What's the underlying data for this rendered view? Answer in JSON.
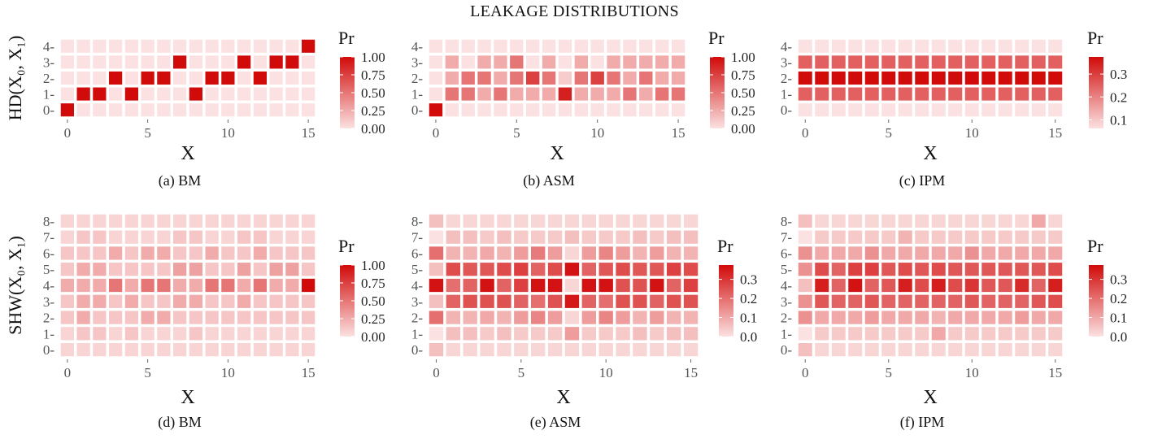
{
  "title": "LEAKAGE DISTRIBUTIONS",
  "row_labels": [
    "HD(X₀, X₁)",
    "SHW(X₀, X₁)"
  ],
  "colors": {
    "low": "#fbe1e1",
    "high": "#d10a0a"
  },
  "chart_data": [
    {
      "type": "heatmap",
      "caption": "(a) BM",
      "xlabel": "X",
      "ylabel": "HD(X₀, X₁)",
      "x_categories": [
        0,
        1,
        2,
        3,
        4,
        5,
        6,
        7,
        8,
        9,
        10,
        11,
        12,
        13,
        14,
        15
      ],
      "y_categories": [
        0,
        1,
        2,
        3,
        4
      ],
      "x_ticks": [
        "0",
        "5",
        "10",
        "15"
      ],
      "y_ticks": [
        "0",
        "1",
        "2",
        "3",
        "4"
      ],
      "legend_title": "Pr",
      "colorbar_ticks": [
        "0.00",
        "0.25",
        "0.50",
        "0.75",
        "1.00"
      ],
      "value_range": [
        0,
        1
      ],
      "values": [
        [
          1,
          0,
          0,
          0,
          0,
          0,
          0,
          0,
          0,
          0,
          0,
          0,
          0,
          0,
          0,
          0
        ],
        [
          0,
          1,
          1,
          0,
          1,
          0,
          0,
          0,
          1,
          0,
          0,
          0,
          0,
          0,
          0,
          0
        ],
        [
          0,
          0,
          0,
          1,
          0,
          1,
          1,
          0,
          0,
          1,
          1,
          0,
          1,
          0,
          0,
          0
        ],
        [
          0,
          0,
          0,
          0,
          0,
          0,
          0,
          1,
          0,
          0,
          0,
          1,
          0,
          1,
          1,
          0
        ],
        [
          0,
          0,
          0,
          0,
          0,
          0,
          0,
          0,
          0,
          0,
          0,
          0,
          0,
          0,
          0,
          1
        ]
      ]
    },
    {
      "type": "heatmap",
      "caption": "(b) ASM",
      "xlabel": "X",
      "ylabel": "",
      "x_categories": [
        0,
        1,
        2,
        3,
        4,
        5,
        6,
        7,
        8,
        9,
        10,
        11,
        12,
        13,
        14,
        15
      ],
      "y_categories": [
        0,
        1,
        2,
        3,
        4
      ],
      "x_ticks": [
        "0",
        "5",
        "10",
        "15"
      ],
      "y_ticks": [
        "0",
        "1",
        "2",
        "3",
        "4"
      ],
      "legend_title": "Pr",
      "colorbar_ticks": [
        "0.00",
        "0.25",
        "0.50",
        "0.75",
        "1.00"
      ],
      "value_range": [
        0,
        1
      ],
      "values": [
        [
          1,
          0,
          0,
          0,
          0,
          0,
          0,
          0,
          0,
          0,
          0,
          0,
          0,
          0,
          0,
          0
        ],
        [
          0,
          0.5,
          0.5,
          0.25,
          0.5,
          0.25,
          0.25,
          0.25,
          0.9,
          0.25,
          0.25,
          0.25,
          0.5,
          0.25,
          0.5,
          0.5
        ],
        [
          0,
          0.25,
          0.5,
          0.5,
          0.25,
          0.5,
          0.75,
          0.5,
          0.1,
          0.5,
          0.75,
          0.5,
          0.25,
          0.5,
          0.25,
          0.25
        ],
        [
          0,
          0.25,
          0,
          0.25,
          0.25,
          0.5,
          0,
          0.25,
          0,
          0.25,
          0,
          0.25,
          0.25,
          0.25,
          0.25,
          0.25
        ],
        [
          0,
          0,
          0,
          0,
          0,
          0,
          0,
          0,
          0,
          0,
          0,
          0,
          0,
          0,
          0,
          0
        ]
      ]
    },
    {
      "type": "heatmap",
      "caption": "(c) IPM",
      "xlabel": "X",
      "ylabel": "",
      "x_categories": [
        0,
        1,
        2,
        3,
        4,
        5,
        6,
        7,
        8,
        9,
        10,
        11,
        12,
        13,
        14,
        15
      ],
      "y_categories": [
        0,
        1,
        2,
        3,
        4
      ],
      "x_ticks": [
        "0",
        "5",
        "10",
        "15"
      ],
      "y_ticks": [
        "0",
        "1",
        "2",
        "3",
        "4"
      ],
      "legend_title": "Pr",
      "colorbar_ticks": [
        "0.1",
        "0.2",
        "0.3"
      ],
      "value_range": [
        0.0625,
        0.375
      ],
      "values": [
        [
          0.0625,
          0.0625,
          0.0625,
          0.0625,
          0.0625,
          0.0625,
          0.0625,
          0.0625,
          0.0625,
          0.0625,
          0.0625,
          0.0625,
          0.0625,
          0.0625,
          0.0625,
          0.0625
        ],
        [
          0.25,
          0.25,
          0.25,
          0.25,
          0.25,
          0.25,
          0.25,
          0.25,
          0.25,
          0.25,
          0.25,
          0.25,
          0.25,
          0.25,
          0.25,
          0.25
        ],
        [
          0.375,
          0.375,
          0.375,
          0.375,
          0.375,
          0.375,
          0.375,
          0.375,
          0.375,
          0.375,
          0.375,
          0.375,
          0.375,
          0.375,
          0.375,
          0.375
        ],
        [
          0.25,
          0.25,
          0.25,
          0.25,
          0.25,
          0.25,
          0.25,
          0.25,
          0.25,
          0.25,
          0.25,
          0.25,
          0.25,
          0.25,
          0.25,
          0.25
        ],
        [
          0.0625,
          0.0625,
          0.0625,
          0.0625,
          0.0625,
          0.0625,
          0.0625,
          0.0625,
          0.0625,
          0.0625,
          0.0625,
          0.0625,
          0.0625,
          0.0625,
          0.0625,
          0.0625
        ]
      ]
    },
    {
      "type": "heatmap",
      "caption": "(d) BM",
      "xlabel": "X",
      "ylabel": "SHW(X₀, X₁)",
      "x_categories": [
        0,
        1,
        2,
        3,
        4,
        5,
        6,
        7,
        8,
        9,
        10,
        11,
        12,
        13,
        14,
        15
      ],
      "y_categories": [
        0,
        1,
        2,
        3,
        4,
        5,
        6,
        7,
        8
      ],
      "x_ticks": [
        "0",
        "5",
        "10",
        "15"
      ],
      "y_ticks": [
        "0",
        "1",
        "2",
        "3",
        "4",
        "5",
        "6",
        "7",
        "8"
      ],
      "legend_title": "Pr",
      "colorbar_ticks": [
        "0.00",
        "0.25",
        "0.50",
        "0.75",
        "1.00"
      ],
      "value_range": [
        0,
        1
      ],
      "values": [
        [
          0.0625,
          0.0625,
          0.0625,
          0.0625,
          0.0625,
          0.0625,
          0.0625,
          0.0625,
          0.0625,
          0.0625,
          0.0625,
          0.0625,
          0.0625,
          0.0625,
          0.0625,
          0.0625
        ],
        [
          0.0625,
          0.125,
          0.125,
          0.0625,
          0.125,
          0.0625,
          0.0625,
          0.0625,
          0.125,
          0.0625,
          0.0625,
          0.0625,
          0.0625,
          0.0625,
          0.0625,
          0.0625
        ],
        [
          0.125,
          0.25,
          0.125,
          0.125,
          0.125,
          0.25,
          0.25,
          0.125,
          0.125,
          0.125,
          0.125,
          0.125,
          0.125,
          0.125,
          0.125,
          0.125
        ],
        [
          0.125,
          0.25,
          0.25,
          0.125,
          0.25,
          0.125,
          0.125,
          0.25,
          0.25,
          0.125,
          0.125,
          0.25,
          0.125,
          0.125,
          0.125,
          0.125
        ],
        [
          0.25,
          0.25,
          0.25,
          0.5,
          0.25,
          0.5,
          0.5,
          0.25,
          0.25,
          0.5,
          0.5,
          0.25,
          0.5,
          0.25,
          0.25,
          1
        ],
        [
          0.125,
          0.25,
          0.25,
          0.125,
          0.125,
          0.125,
          0.125,
          0.3,
          0.3,
          0.125,
          0.125,
          0.3,
          0.125,
          0.3,
          0.3,
          0.125
        ],
        [
          0.125,
          0.125,
          0.125,
          0.25,
          0.125,
          0.25,
          0.25,
          0.125,
          0.125,
          0.25,
          0.125,
          0.125,
          0.25,
          0.125,
          0.125,
          0.125
        ],
        [
          0.0625,
          0.125,
          0.125,
          0.0625,
          0.0625,
          0.0625,
          0.0625,
          0.125,
          0.125,
          0.0625,
          0.0625,
          0.125,
          0.125,
          0.0625,
          0.0625,
          0.0625
        ],
        [
          0.0625,
          0.0625,
          0.0625,
          0.0625,
          0.0625,
          0.0625,
          0.0625,
          0.0625,
          0.0625,
          0.0625,
          0.0625,
          0.0625,
          0.0625,
          0.0625,
          0.0625,
          0.0625
        ]
      ]
    },
    {
      "type": "heatmap",
      "caption": "(e) ASM",
      "xlabel": "X",
      "ylabel": "",
      "x_categories": [
        0,
        1,
        2,
        3,
        4,
        5,
        6,
        7,
        8,
        9,
        10,
        11,
        12,
        13,
        14,
        15
      ],
      "y_categories": [
        0,
        1,
        2,
        3,
        4,
        5,
        6,
        7,
        8
      ],
      "x_ticks": [
        "0",
        "5",
        "10",
        "15"
      ],
      "y_ticks": [
        "0",
        "1",
        "2",
        "3",
        "4",
        "5",
        "6",
        "7",
        "8"
      ],
      "legend_title": "Pr",
      "colorbar_ticks": [
        "0.0",
        "0.1",
        "0.2",
        "0.3"
      ],
      "value_range": [
        0,
        0.375
      ],
      "values": [
        [
          0.06,
          0.02,
          0.02,
          0.02,
          0.02,
          0.02,
          0.02,
          0.02,
          0.02,
          0.02,
          0.02,
          0.02,
          0.02,
          0.02,
          0.02,
          0.02
        ],
        [
          0.0,
          0.06,
          0.06,
          0.04,
          0.06,
          0.04,
          0.04,
          0.04,
          0.12,
          0.04,
          0.04,
          0.04,
          0.06,
          0.04,
          0.06,
          0.06
        ],
        [
          0.2,
          0.08,
          0.08,
          0.1,
          0.08,
          0.12,
          0.16,
          0.12,
          0.02,
          0.12,
          0.16,
          0.12,
          0.08,
          0.12,
          0.08,
          0.08
        ],
        [
          0.06,
          0.22,
          0.25,
          0.25,
          0.25,
          0.22,
          0.2,
          0.25,
          0.35,
          0.22,
          0.2,
          0.25,
          0.25,
          0.22,
          0.25,
          0.25
        ],
        [
          0.36,
          0.2,
          0.22,
          0.36,
          0.22,
          0.28,
          0.36,
          0.36,
          0.02,
          0.36,
          0.36,
          0.25,
          0.25,
          0.36,
          0.22,
          0.28
        ],
        [
          0.06,
          0.26,
          0.24,
          0.24,
          0.26,
          0.28,
          0.22,
          0.26,
          0.36,
          0.22,
          0.24,
          0.26,
          0.24,
          0.24,
          0.28,
          0.26
        ],
        [
          0.2,
          0.08,
          0.08,
          0.1,
          0.08,
          0.12,
          0.18,
          0.12,
          0.02,
          0.12,
          0.16,
          0.12,
          0.08,
          0.12,
          0.08,
          0.08
        ],
        [
          0.0,
          0.06,
          0.06,
          0.04,
          0.06,
          0.04,
          0.04,
          0.04,
          0.06,
          0.04,
          0.04,
          0.04,
          0.06,
          0.04,
          0.06,
          0.06
        ],
        [
          0.06,
          0.02,
          0.02,
          0.02,
          0.02,
          0.02,
          0.02,
          0.02,
          0.02,
          0.02,
          0.02,
          0.02,
          0.02,
          0.02,
          0.02,
          0.02
        ]
      ]
    },
    {
      "type": "heatmap",
      "caption": "(f) IPM",
      "xlabel": "X",
      "ylabel": "",
      "x_categories": [
        0,
        1,
        2,
        3,
        4,
        5,
        6,
        7,
        8,
        9,
        10,
        11,
        12,
        13,
        14,
        15
      ],
      "y_categories": [
        0,
        1,
        2,
        3,
        4,
        5,
        6,
        7,
        8
      ],
      "x_ticks": [
        "0",
        "5",
        "10",
        "15"
      ],
      "y_ticks": [
        "0",
        "1",
        "2",
        "3",
        "4",
        "5",
        "6",
        "7",
        "8"
      ],
      "legend_title": "Pr",
      "colorbar_ticks": [
        "0.0",
        "0.1",
        "0.2",
        "0.3"
      ],
      "value_range": [
        0,
        0.375
      ],
      "values": [
        [
          0.06,
          0.02,
          0.02,
          0.02,
          0.02,
          0.02,
          0.02,
          0.02,
          0.02,
          0.02,
          0.02,
          0.02,
          0.02,
          0.02,
          0.02,
          0.02
        ],
        [
          0.0,
          0.04,
          0.04,
          0.04,
          0.04,
          0.04,
          0.04,
          0.04,
          0.1,
          0.04,
          0.04,
          0.04,
          0.04,
          0.04,
          0.04,
          0.04
        ],
        [
          0.14,
          0.1,
          0.1,
          0.1,
          0.12,
          0.1,
          0.1,
          0.1,
          0.08,
          0.1,
          0.1,
          0.1,
          0.1,
          0.12,
          0.1,
          0.1
        ],
        [
          0.14,
          0.24,
          0.22,
          0.22,
          0.24,
          0.22,
          0.22,
          0.22,
          0.22,
          0.22,
          0.24,
          0.22,
          0.22,
          0.22,
          0.24,
          0.26
        ],
        [
          0.06,
          0.34,
          0.22,
          0.36,
          0.22,
          0.24,
          0.34,
          0.26,
          0.34,
          0.26,
          0.3,
          0.24,
          0.24,
          0.32,
          0.22,
          0.34
        ],
        [
          0.14,
          0.26,
          0.22,
          0.28,
          0.28,
          0.24,
          0.26,
          0.24,
          0.26,
          0.24,
          0.24,
          0.24,
          0.24,
          0.24,
          0.24,
          0.26
        ],
        [
          0.14,
          0.1,
          0.1,
          0.1,
          0.14,
          0.1,
          0.1,
          0.1,
          0.1,
          0.1,
          0.14,
          0.1,
          0.1,
          0.1,
          0.1,
          0.1
        ],
        [
          0.0,
          0.04,
          0.04,
          0.04,
          0.04,
          0.04,
          0.08,
          0.04,
          0.04,
          0.04,
          0.04,
          0.04,
          0.04,
          0.04,
          0.04,
          0.04
        ],
        [
          0.06,
          0.02,
          0.02,
          0.02,
          0.02,
          0.02,
          0.02,
          0.02,
          0.02,
          0.02,
          0.02,
          0.02,
          0.02,
          0.02,
          0.1,
          0.02
        ]
      ]
    }
  ]
}
